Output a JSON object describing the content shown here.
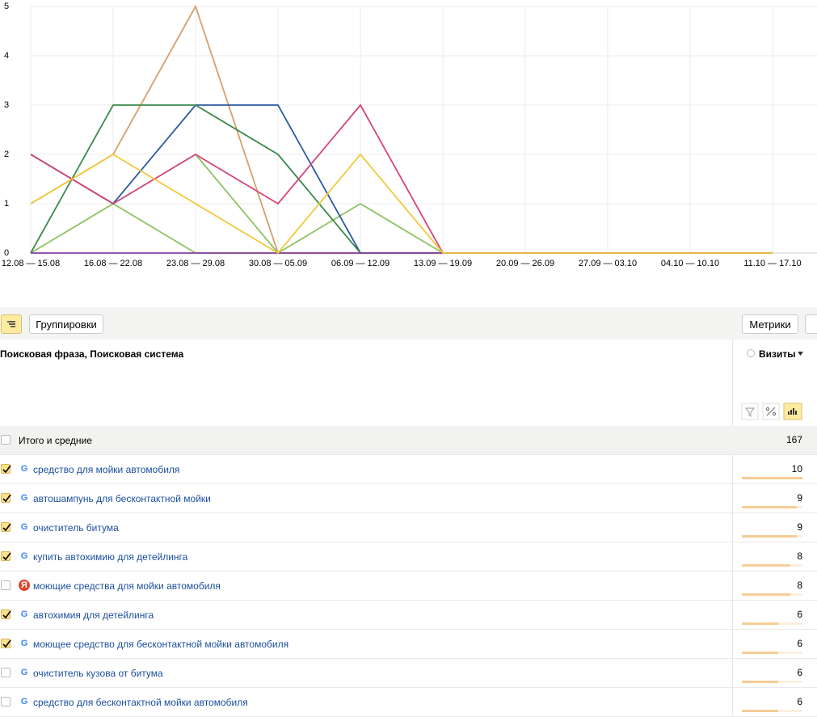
{
  "chart_data": {
    "type": "line",
    "categories": [
      "12.08 — 15.08",
      "16.08 — 22.08",
      "23.08 — 29.08",
      "30.08 — 05.09",
      "06.09 — 12.09",
      "13.09 — 19.09",
      "20.09 — 26.09",
      "27.09 — 03.10",
      "04.10 — 10.10",
      "11.10 — 17.10"
    ],
    "series": [
      {
        "color": "#8dc262",
        "values": [
          0,
          1,
          0,
          0,
          0,
          0,
          0,
          0,
          0,
          0
        ]
      },
      {
        "color": "#8dc262",
        "values": [
          2,
          1,
          2,
          0,
          1,
          0,
          0,
          0,
          0,
          0
        ]
      },
      {
        "color": "#d4a06a",
        "values": [
          1,
          2,
          5,
          0,
          0,
          0,
          0,
          0,
          0,
          0
        ]
      },
      {
        "color": "#2d5aa0",
        "values": [
          2,
          1,
          3,
          3,
          0,
          0,
          0,
          0,
          0,
          0
        ]
      },
      {
        "color": "#3a8a4a",
        "values": [
          0,
          3,
          3,
          2,
          0,
          0,
          0,
          0,
          0,
          0
        ]
      },
      {
        "color": "#d6457a",
        "values": [
          2,
          1,
          2,
          1,
          3,
          0,
          0,
          0,
          0,
          0
        ]
      },
      {
        "color": "#8b3fa0",
        "values": [
          0,
          0,
          0,
          0,
          0,
          0,
          0,
          0,
          0,
          0
        ]
      },
      {
        "color": "#f0c93a",
        "values": [
          1,
          2,
          1,
          0,
          2,
          0,
          0,
          0,
          0,
          0
        ]
      }
    ],
    "ylim": [
      0,
      5
    ],
    "yticks": [
      0,
      1,
      2,
      3,
      4,
      5
    ],
    "grid": true
  },
  "toolbar": {
    "groupings": "Группировки",
    "metrics": "Метрики"
  },
  "table": {
    "dimension_header": "Поисковая фраза, Поисковая система",
    "metric_header": "Визиты",
    "total": {
      "label": "Итого и средние",
      "value": 167
    },
    "rows": [
      {
        "label": "средство для мойки автомобиля",
        "engine": "G",
        "checked": true,
        "value": 10
      },
      {
        "label": "автошампунь для бесконтактной мойки",
        "engine": "G",
        "checked": true,
        "value": 9
      },
      {
        "label": "очиститель битума",
        "engine": "G",
        "checked": true,
        "value": 9
      },
      {
        "label": "купить автохимию для детейлинга",
        "engine": "G",
        "checked": true,
        "value": 8
      },
      {
        "label": "моющие средства для мойки автомобиля",
        "engine": "Я",
        "checked": false,
        "value": 8
      },
      {
        "label": "автохимия для детейлинга",
        "engine": "G",
        "checked": true,
        "value": 6
      },
      {
        "label": "моющее средство для бесконтактной мойки автомобиля",
        "engine": "G",
        "checked": true,
        "value": 6
      },
      {
        "label": "очиститель кузова от битума",
        "engine": "G",
        "checked": false,
        "value": 6
      },
      {
        "label": "средство для бесконтактной мойки автомобиля",
        "engine": "G",
        "checked": false,
        "value": 6
      }
    ]
  }
}
